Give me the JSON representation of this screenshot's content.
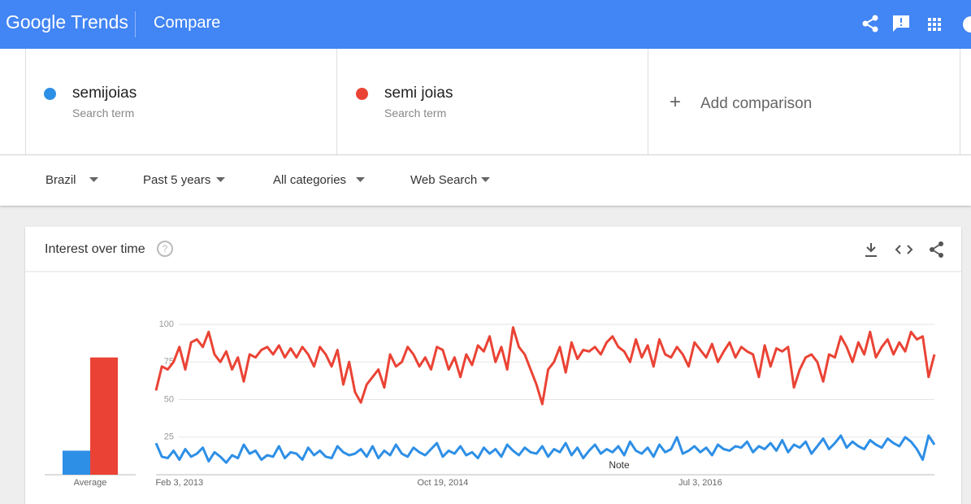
{
  "header": {
    "logo": "Google Trends",
    "title": "Compare"
  },
  "term_labels": [
    "Search term",
    "Search term"
  ],
  "add": "Add comparison",
  "filters": [
    "Brazil",
    "Past 5 years",
    "All categories",
    "Web Search"
  ],
  "card_title": "Interest over time",
  "chart_data": {
    "type": "line",
    "average_label": "Average",
    "note": "Note",
    "categories": [
      null,
      null,
      null,
      null,
      "Feb 3, 2013",
      null,
      null,
      null,
      null,
      null,
      null,
      null,
      null,
      null,
      null,
      null,
      null,
      null,
      null,
      null,
      null,
      null,
      null,
      null,
      null,
      null,
      null,
      null,
      null,
      null,
      null,
      null,
      null,
      null,
      null,
      null,
      null,
      null,
      null,
      null,
      null,
      null,
      null,
      null,
      null,
      null,
      null,
      null,
      null,
      "Oct 19, 2014",
      null,
      null,
      null,
      null,
      null,
      null,
      null,
      null,
      null,
      null,
      null,
      null,
      null,
      null,
      null,
      null,
      null,
      null,
      null,
      null,
      null,
      null,
      null,
      null,
      null,
      null,
      null,
      null,
      null,
      null,
      null,
      null,
      null,
      null,
      null,
      null,
      null,
      null,
      null,
      null,
      null,
      null,
      null,
      "Jul 3, 2016",
      null,
      null,
      null,
      null,
      null,
      null,
      null,
      null,
      null,
      null,
      null,
      null,
      null,
      null,
      null,
      null,
      null,
      null,
      null,
      null,
      null,
      null,
      null,
      null,
      null,
      null,
      null,
      null,
      null,
      null,
      null,
      null,
      null,
      null,
      null,
      null,
      null,
      null,
      null,
      null
    ],
    "series": [
      {
        "name": "semijoias",
        "color": "#2e8fe6",
        "average": 16,
        "values": [
          21,
          12,
          11,
          16,
          10,
          17,
          12,
          14,
          18,
          9,
          15,
          12,
          8,
          13,
          11,
          20,
          14,
          16,
          10,
          13,
          12,
          19,
          11,
          15,
          14,
          10,
          18,
          13,
          16,
          12,
          11,
          19,
          15,
          13,
          14,
          17,
          12,
          19,
          11,
          16,
          13,
          20,
          14,
          12,
          18,
          15,
          13,
          17,
          21,
          12,
          16,
          14,
          19,
          13,
          15,
          11,
          18,
          14,
          17,
          12,
          20,
          16,
          13,
          18,
          15,
          14,
          19,
          12,
          17,
          15,
          21,
          13,
          18,
          11,
          16,
          20,
          14,
          17,
          15,
          19,
          13,
          22,
          16,
          14,
          18,
          12,
          20,
          15,
          17,
          25,
          14,
          16,
          19,
          15,
          18,
          13,
          20,
          17,
          16,
          19,
          18,
          22,
          15,
          19,
          17,
          21,
          16,
          23,
          15,
          20,
          18,
          22,
          14,
          19,
          24,
          17,
          21,
          26,
          18,
          22,
          19,
          17,
          23,
          20,
          18,
          24,
          21,
          19,
          25,
          22,
          17,
          10,
          26,
          20
        ]
      },
      {
        "name": "semi joias",
        "color": "#ea4335",
        "average": 78,
        "values": [
          56,
          72,
          70,
          75,
          85,
          70,
          88,
          90,
          85,
          95,
          80,
          75,
          82,
          70,
          78,
          62,
          80,
          78,
          83,
          85,
          80,
          86,
          78,
          84,
          78,
          85,
          80,
          72,
          85,
          80,
          72,
          83,
          60,
          75,
          55,
          48,
          60,
          65,
          70,
          58,
          80,
          72,
          75,
          85,
          80,
          72,
          78,
          70,
          85,
          83,
          70,
          78,
          65,
          80,
          73,
          86,
          82,
          92,
          75,
          85,
          70,
          98,
          85,
          80,
          70,
          60,
          47,
          70,
          75,
          85,
          68,
          88,
          77,
          83,
          82,
          85,
          80,
          88,
          92,
          85,
          82,
          75,
          90,
          78,
          86,
          72,
          90,
          80,
          78,
          85,
          80,
          72,
          88,
          83,
          78,
          87,
          75,
          82,
          88,
          78,
          85,
          82,
          80,
          65,
          86,
          72,
          84,
          82,
          85,
          58,
          70,
          78,
          80,
          75,
          62,
          80,
          78,
          92,
          85,
          75,
          88,
          80,
          95,
          78,
          85,
          90,
          80,
          88,
          82,
          95,
          90,
          92,
          65,
          80
        ]
      }
    ],
    "ylim": [
      0,
      100
    ],
    "yticks": [
      25,
      50,
      75,
      100
    ],
    "grid": true
  }
}
